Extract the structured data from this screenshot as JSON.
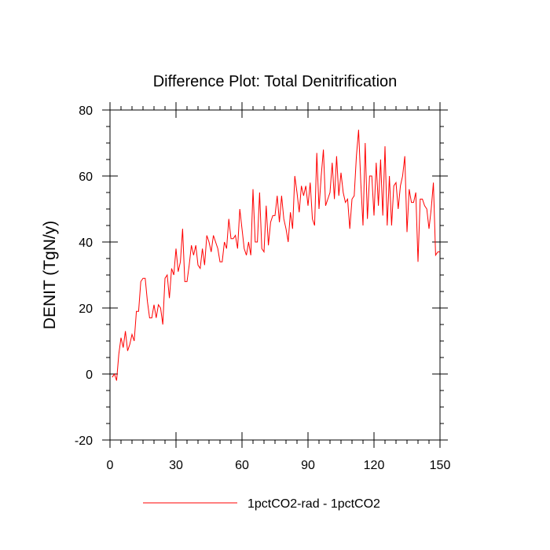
{
  "chart_data": {
    "type": "line",
    "title": "Difference Plot: Total Denitrification",
    "xlabel": "",
    "ylabel": "DENIT  (TgN/y)",
    "xlim": [
      0,
      150
    ],
    "ylim": [
      -20,
      80
    ],
    "xticks": [
      0,
      30,
      60,
      90,
      120,
      150
    ],
    "yticks": [
      -20,
      0,
      20,
      40,
      60,
      80
    ],
    "grid": false,
    "legend_position": "bottom-center",
    "series": [
      {
        "name": "1pctCO2-rad - 1pctCO2",
        "color": "#ff0000",
        "x": [
          1,
          2,
          3,
          4,
          5,
          6,
          7,
          8,
          9,
          10,
          11,
          12,
          13,
          14,
          15,
          16,
          17,
          18,
          19,
          20,
          21,
          22,
          23,
          24,
          25,
          26,
          27,
          28,
          29,
          30,
          31,
          32,
          33,
          34,
          35,
          36,
          37,
          38,
          39,
          40,
          41,
          42,
          43,
          44,
          45,
          46,
          47,
          48,
          49,
          50,
          51,
          52,
          53,
          54,
          55,
          56,
          57,
          58,
          59,
          60,
          61,
          62,
          63,
          64,
          65,
          66,
          67,
          68,
          69,
          70,
          71,
          72,
          73,
          74,
          75,
          76,
          77,
          78,
          79,
          80,
          81,
          82,
          83,
          84,
          85,
          86,
          87,
          88,
          89,
          90,
          91,
          92,
          93,
          94,
          95,
          96,
          97,
          98,
          99,
          100,
          101,
          102,
          103,
          104,
          105,
          106,
          107,
          108,
          109,
          110,
          111,
          112,
          113,
          114,
          115,
          116,
          117,
          118,
          119,
          120,
          121,
          122,
          123,
          124,
          125,
          126,
          127,
          128,
          129,
          130,
          131,
          132,
          133,
          134,
          135,
          136,
          137,
          138,
          139,
          140,
          141,
          142,
          143,
          144,
          145,
          146,
          147,
          148,
          149,
          150
        ],
        "y": [
          -1,
          0,
          -2,
          6,
          11,
          8,
          13,
          7,
          9,
          12,
          10,
          19,
          19,
          28,
          29,
          29,
          22,
          17,
          17,
          21,
          17,
          21,
          20,
          15,
          29,
          30,
          23,
          32,
          30,
          38,
          31,
          34,
          44,
          28,
          28,
          33,
          39,
          36,
          39,
          33,
          32,
          38,
          33,
          42,
          40,
          37,
          42,
          40,
          38,
          34,
          34,
          40,
          38,
          47,
          41,
          41,
          42,
          38,
          50,
          44,
          38,
          36,
          40,
          36,
          56,
          40,
          40,
          55,
          38,
          37,
          51,
          39,
          46,
          48,
          48,
          54,
          46,
          54,
          47,
          44,
          40,
          49,
          44,
          60,
          55,
          49,
          57,
          54,
          57,
          51,
          58,
          47,
          45,
          67,
          50,
          60,
          68,
          51,
          53,
          55,
          64,
          53,
          66,
          54,
          61,
          55,
          52,
          53,
          44,
          53,
          54,
          66,
          74,
          58,
          45,
          70,
          47,
          60,
          60,
          48,
          64,
          51,
          65,
          48,
          69,
          45,
          60,
          45,
          57,
          58,
          50,
          57,
          60,
          66,
          43,
          56,
          52,
          52,
          55,
          34,
          53,
          53,
          51,
          50,
          44,
          50,
          58,
          36,
          37,
          37
        ]
      }
    ]
  }
}
